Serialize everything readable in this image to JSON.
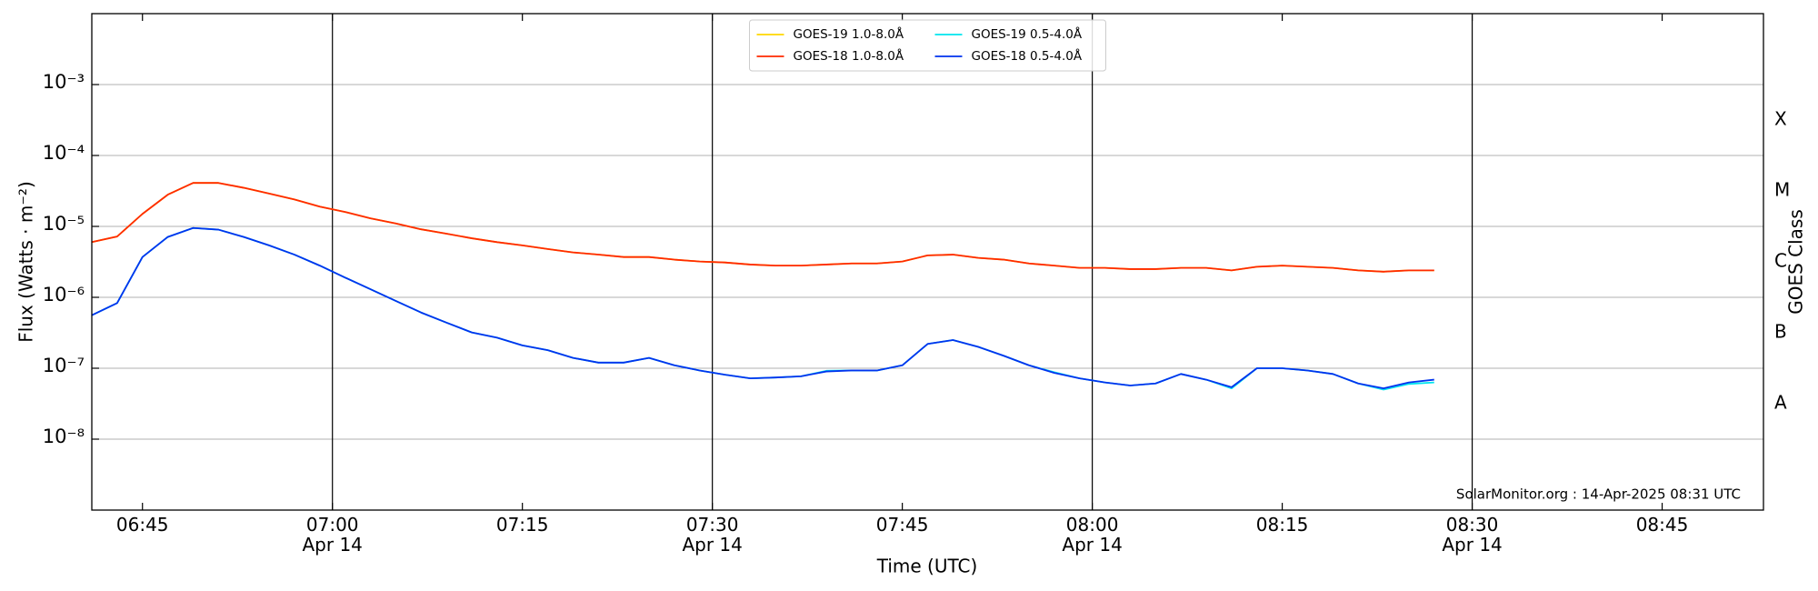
{
  "chart_data": {
    "type": "line",
    "ylabel": "Flux (Watts · m⁻²)",
    "xlabel": "Time (UTC)",
    "y2label": "GOES Class",
    "annotation": "SolarMonitor.org : 14-Apr-2025 08:31 UTC",
    "log_y": true,
    "grid": true,
    "legend": "upper center",
    "legend_columns": 2,
    "x": [
      "06:41",
      "06:43",
      "06:45",
      "06:47",
      "06:49",
      "06:51",
      "06:53",
      "06:55",
      "06:57",
      "06:59",
      "07:01",
      "07:03",
      "07:05",
      "07:07",
      "07:09",
      "07:11",
      "07:13",
      "07:15",
      "07:17",
      "07:19",
      "07:21",
      "07:23",
      "07:25",
      "07:27",
      "07:29",
      "07:31",
      "07:33",
      "07:35",
      "07:37",
      "07:39",
      "07:41",
      "07:43",
      "07:45",
      "07:47",
      "07:49",
      "07:51",
      "07:53",
      "07:55",
      "07:57",
      "07:59",
      "08:01",
      "08:03",
      "08:05",
      "08:07",
      "08:09",
      "08:11",
      "08:13",
      "08:15",
      "08:17",
      "08:19",
      "08:21",
      "08:23",
      "08:25",
      "08:27"
    ],
    "series": [
      {
        "name": "GOES-19 1.0-8.0Å",
        "color": "#ffd700",
        "values": [
          6e-06,
          7.2e-06,
          1.5e-05,
          2.8e-05,
          4.1e-05,
          4.1e-05,
          3.5e-05,
          2.9e-05,
          2.4e-05,
          1.9e-05,
          1.6e-05,
          1.3e-05,
          1.1e-05,
          9.1e-06,
          7.9e-06,
          6.8e-06,
          6e-06,
          5.4e-06,
          4.8e-06,
          4.3e-06,
          4e-06,
          3.7e-06,
          3.7e-06,
          3.4e-06,
          3.2e-06,
          3.1e-06,
          2.9e-06,
          2.8e-06,
          2.8e-06,
          2.9e-06,
          3e-06,
          3e-06,
          3.2e-06,
          3.9e-06,
          4e-06,
          3.6e-06,
          3.4e-06,
          3e-06,
          2.8e-06,
          2.6e-06,
          2.6e-06,
          2.5e-06,
          2.5e-06,
          2.6e-06,
          2.6e-06,
          2.4e-06,
          2.7e-06,
          2.8e-06,
          2.7e-06,
          2.6e-06,
          2.4e-06,
          2.3e-06,
          2.4e-06,
          2.4e-06
        ]
      },
      {
        "name": "GOES-18 1.0-8.0Å",
        "color": "#ff2a00",
        "values": [
          6e-06,
          7.2e-06,
          1.5e-05,
          2.8e-05,
          4.1e-05,
          4.1e-05,
          3.5e-05,
          2.9e-05,
          2.4e-05,
          1.9e-05,
          1.6e-05,
          1.3e-05,
          1.1e-05,
          9.1e-06,
          7.9e-06,
          6.8e-06,
          6e-06,
          5.4e-06,
          4.8e-06,
          4.3e-06,
          4e-06,
          3.7e-06,
          3.7e-06,
          3.4e-06,
          3.2e-06,
          3.1e-06,
          2.9e-06,
          2.8e-06,
          2.8e-06,
          2.9e-06,
          3e-06,
          3e-06,
          3.2e-06,
          3.9e-06,
          4e-06,
          3.6e-06,
          3.4e-06,
          3e-06,
          2.8e-06,
          2.6e-06,
          2.6e-06,
          2.5e-06,
          2.5e-06,
          2.6e-06,
          2.6e-06,
          2.4e-06,
          2.7e-06,
          2.8e-06,
          2.7e-06,
          2.6e-06,
          2.4e-06,
          2.3e-06,
          2.4e-06,
          2.4e-06
        ]
      },
      {
        "name": "GOES-19 0.5-4.0Å",
        "color": "#00e5ee",
        "values": [
          5.6e-07,
          8.3e-07,
          3.7e-06,
          7.1e-06,
          9.5e-06,
          9e-06,
          7.1e-06,
          5.4e-06,
          4e-06,
          2.8e-06,
          1.9e-06,
          1.3e-06,
          8.9e-07,
          6.1e-07,
          4.4e-07,
          3.2e-07,
          2.7e-07,
          2.1e-07,
          1.8e-07,
          1.4e-07,
          1.2e-07,
          1.2e-07,
          1.4e-07,
          1.1e-07,
          9.3e-08,
          8.1e-08,
          7.2e-08,
          7.4e-08,
          7.7e-08,
          9.2e-08,
          9.3e-08,
          9.3e-08,
          1.1e-07,
          2.2e-07,
          2.5e-07,
          2e-07,
          1.5e-07,
          1.1e-07,
          8.8e-08,
          7.2e-08,
          6.3e-08,
          5.7e-08,
          6.1e-08,
          8.3e-08,
          6.9e-08,
          5.2e-08,
          1e-07,
          1e-07,
          9.3e-08,
          8.3e-08,
          6.1e-08,
          5e-08,
          6e-08,
          6.3e-08
        ]
      },
      {
        "name": "GOES-18 0.5-4.0Å",
        "color": "#0033ee",
        "values": [
          5.6e-07,
          8.3e-07,
          3.7e-06,
          7.1e-06,
          9.5e-06,
          9e-06,
          7.1e-06,
          5.4e-06,
          4e-06,
          2.8e-06,
          1.9e-06,
          1.3e-06,
          8.9e-07,
          6.1e-07,
          4.4e-07,
          3.2e-07,
          2.7e-07,
          2.1e-07,
          1.8e-07,
          1.4e-07,
          1.2e-07,
          1.2e-07,
          1.4e-07,
          1.1e-07,
          9.3e-08,
          8.1e-08,
          7.2e-08,
          7.4e-08,
          7.7e-08,
          9e-08,
          9.3e-08,
          9.3e-08,
          1.1e-07,
          2.2e-07,
          2.5e-07,
          2e-07,
          1.5e-07,
          1.1e-07,
          8.6e-08,
          7.2e-08,
          6.3e-08,
          5.7e-08,
          6.1e-08,
          8.3e-08,
          6.9e-08,
          5.4e-08,
          1e-07,
          1e-07,
          9.3e-08,
          8.3e-08,
          6.1e-08,
          5.2e-08,
          6.3e-08,
          6.9e-08
        ]
      }
    ],
    "xlim": [
      "06:41",
      "08:53"
    ],
    "xticks": [
      "06:45",
      {
        "value": "07:00",
        "label": "07:00\nApr 14"
      },
      "07:15",
      {
        "value": "07:30",
        "label": "07:30\nApr 14"
      },
      "07:45",
      {
        "value": "08:00",
        "label": "08:00\nApr 14"
      },
      "08:15",
      {
        "value": "08:30",
        "label": "08:30\nApr 14"
      },
      "08:45"
    ],
    "vlines": [
      "07:00",
      "07:30",
      "08:00",
      "08:30"
    ],
    "ylim": [
      1e-09,
      0.01
    ],
    "yticks": [
      {
        "value": 1e-08,
        "label": "10⁻⁸"
      },
      {
        "value": 1e-07,
        "label": "10⁻⁷"
      },
      {
        "value": 1e-06,
        "label": "10⁻⁶"
      },
      {
        "value": 1e-05,
        "label": "10⁻⁵"
      },
      {
        "value": 0.0001,
        "label": "10⁻⁴"
      },
      {
        "value": 0.001,
        "label": "10⁻³"
      }
    ],
    "y2lim": [
      1e-09,
      0.01
    ],
    "y2ticks": [
      {
        "value": 3.162e-08,
        "label": "A"
      },
      {
        "value": 3.162e-07,
        "label": "B"
      },
      {
        "value": 3.162e-06,
        "label": "C"
      },
      {
        "value": 3.162e-05,
        "label": "M"
      },
      {
        "value": 0.0003162,
        "label": "X"
      }
    ]
  }
}
